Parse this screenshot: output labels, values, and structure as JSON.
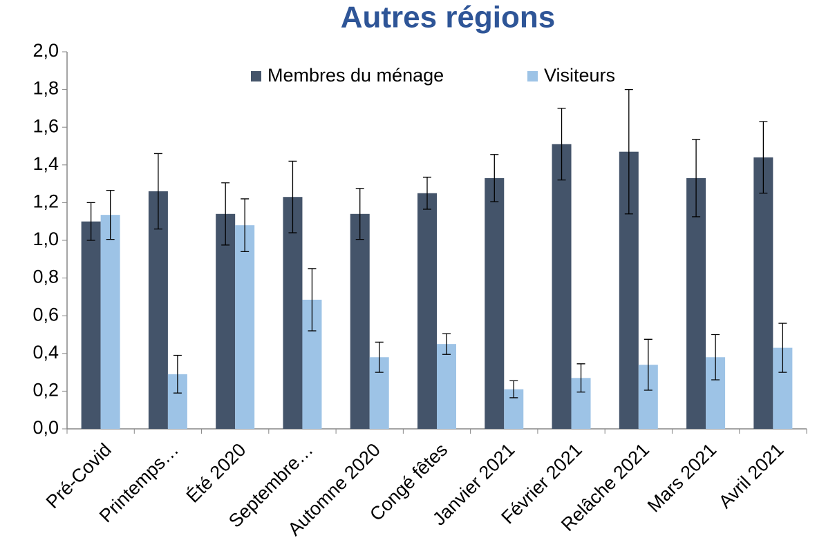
{
  "chart_data": {
    "type": "bar",
    "title": "Autres régions",
    "categories": [
      "Pré-Covid",
      "Printemps…",
      "Été 2020",
      "Septembre…",
      "Automne 2020",
      "Congé fêtes",
      "Janvier 2021",
      "Février 2021",
      "Relâche 2021",
      "Mars 2021",
      "Avril 2021"
    ],
    "series": [
      {
        "name": "Membres du ménage",
        "color": "#44546a",
        "values": [
          1.1,
          1.26,
          1.14,
          1.23,
          1.14,
          1.25,
          1.33,
          1.51,
          1.47,
          1.33,
          1.44
        ],
        "errors": [
          0.1,
          0.2,
          0.165,
          0.19,
          0.135,
          0.085,
          0.125,
          0.19,
          0.33,
          0.205,
          0.19
        ]
      },
      {
        "name": "Visiteurs",
        "color": "#9dc3e6",
        "values": [
          1.135,
          0.29,
          1.08,
          0.685,
          0.38,
          0.45,
          0.21,
          0.27,
          0.34,
          0.38,
          0.43
        ],
        "errors": [
          0.13,
          0.1,
          0.14,
          0.165,
          0.08,
          0.055,
          0.045,
          0.075,
          0.135,
          0.12,
          0.13
        ]
      }
    ],
    "ylim": [
      0,
      2
    ],
    "yticks": [
      {
        "value": 0,
        "label": "0,0"
      },
      {
        "value": 0.2,
        "label": "0,2"
      },
      {
        "value": 0.4,
        "label": "0,4"
      },
      {
        "value": 0.6,
        "label": "0,6"
      },
      {
        "value": 0.8,
        "label": "0,8"
      },
      {
        "value": 1,
        "label": "1,0"
      },
      {
        "value": 1.2,
        "label": "1,2"
      },
      {
        "value": 1.4,
        "label": "1,4"
      },
      {
        "value": 1.6,
        "label": "1,6"
      },
      {
        "value": 1.8,
        "label": "1,8"
      },
      {
        "value": 2,
        "label": "2,0"
      }
    ],
    "legend": "top"
  }
}
